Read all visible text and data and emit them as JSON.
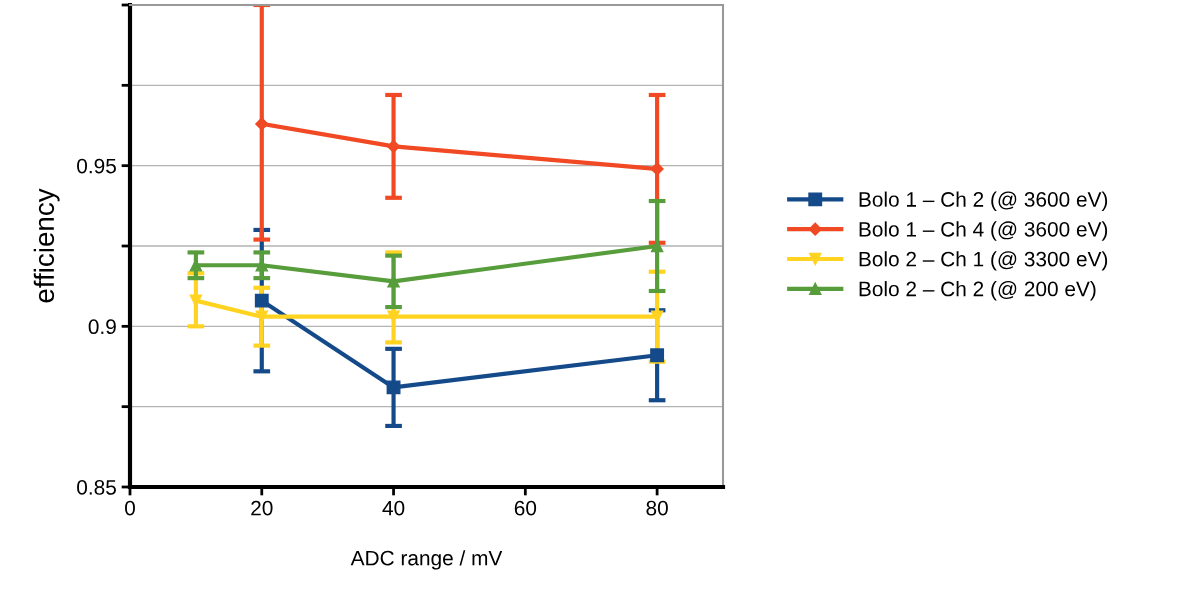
{
  "chart_data": {
    "type": "line",
    "xlabel": "ADC range / mV",
    "ylabel": "efficiency",
    "xlim": [
      0,
      90
    ],
    "xticks": [
      0,
      20,
      40,
      60,
      80
    ],
    "ylim": [
      0.85,
      1.0
    ],
    "yticks": [
      0.85,
      {
        "value": 0.875,
        "label": null
      },
      0.9,
      {
        "value": 0.925,
        "label": null
      },
      0.95,
      {
        "value": 0.975,
        "label": null
      },
      {
        "value": 1.0,
        "label": null
      }
    ],
    "grid": "y",
    "legend": "right",
    "series": [
      {
        "name": "Bolo 1 – Ch 2 (@ 3600 eV)",
        "color": "#154a8a",
        "marker": "square",
        "x": [
          20,
          40,
          80
        ],
        "values": [
          0.908,
          0.881,
          0.891
        ],
        "errors": [
          [
            0.886,
            0.93
          ],
          [
            0.869,
            0.893
          ],
          [
            0.877,
            0.905
          ]
        ]
      },
      {
        "name": "Bolo 1 – Ch 4 (@ 3600 eV)",
        "color": "#f04923",
        "marker": "diamond",
        "x": [
          20,
          40,
          80
        ],
        "values": [
          0.963,
          0.956,
          0.949
        ],
        "errors": [
          [
            0.927,
            1.0
          ],
          [
            0.94,
            0.972
          ],
          [
            0.926,
            0.972
          ]
        ]
      },
      {
        "name": "Bolo 2 – Ch 1 (@ 3300 eV)",
        "color": "#ffd320",
        "marker": "triangle_down",
        "x": [
          10,
          20,
          40,
          80
        ],
        "values": [
          0.908,
          0.903,
          0.903,
          0.903
        ],
        "errors": [
          [
            0.9,
            0.9165
          ],
          [
            0.894,
            0.912
          ],
          [
            0.895,
            0.923
          ],
          [
            0.889,
            0.917
          ]
        ]
      },
      {
        "name": "Bolo 2 – Ch 2 (@ 200 eV)",
        "color": "#579d3c",
        "marker": "triangle",
        "x": [
          10,
          20,
          40,
          80
        ],
        "values": [
          0.919,
          0.919,
          0.914,
          0.925
        ],
        "errors": [
          [
            0.915,
            0.923
          ],
          [
            0.915,
            0.923
          ],
          [
            0.906,
            0.922
          ],
          [
            0.911,
            0.939
          ]
        ]
      }
    ]
  }
}
